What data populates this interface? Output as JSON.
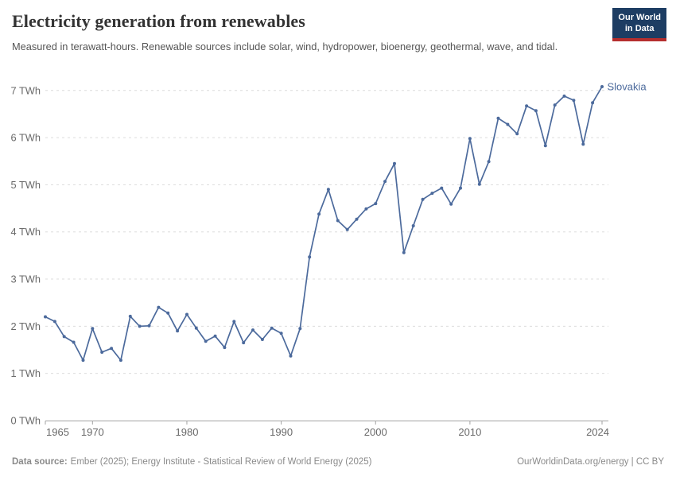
{
  "header": {
    "title": "Electricity generation from renewables",
    "subtitle": "Measured in terawatt-hours. Renewable sources include solar, wind, hydropower, bioenergy, geothermal, wave, and tidal.",
    "logo": {
      "line1": "Our World",
      "line2": "in Data"
    }
  },
  "chart_data": {
    "type": "line",
    "title": "Electricity generation from renewables",
    "ylabel": "",
    "xlabel": "",
    "unit": "TWh",
    "ylim": [
      0,
      7.4
    ],
    "xlim": [
      1965,
      2024
    ],
    "grid": true,
    "legend_position": "end-of-line",
    "y_ticks": [
      {
        "v": 0,
        "label": "0 TWh"
      },
      {
        "v": 1,
        "label": "1 TWh"
      },
      {
        "v": 2,
        "label": "2 TWh"
      },
      {
        "v": 3,
        "label": "3 TWh"
      },
      {
        "v": 4,
        "label": "4 TWh"
      },
      {
        "v": 5,
        "label": "5 TWh"
      },
      {
        "v": 6,
        "label": "6 TWh"
      },
      {
        "v": 7,
        "label": "7 TWh"
      }
    ],
    "x_ticks": [
      {
        "v": 1965,
        "label": "1965"
      },
      {
        "v": 1970,
        "label": "1970"
      },
      {
        "v": 1980,
        "label": "1980"
      },
      {
        "v": 1990,
        "label": "1990"
      },
      {
        "v": 2000,
        "label": "2000"
      },
      {
        "v": 2010,
        "label": "2010"
      },
      {
        "v": 2024,
        "label": "2024"
      }
    ],
    "series": [
      {
        "name": "Slovakia",
        "color": "#4C6A9C",
        "years": [
          1965,
          1966,
          1967,
          1968,
          1969,
          1970,
          1971,
          1972,
          1973,
          1974,
          1975,
          1976,
          1977,
          1978,
          1979,
          1980,
          1981,
          1982,
          1983,
          1984,
          1985,
          1986,
          1987,
          1988,
          1989,
          1990,
          1991,
          1992,
          1993,
          1994,
          1995,
          1996,
          1997,
          1998,
          1999,
          2000,
          2001,
          2002,
          2003,
          2004,
          2005,
          2006,
          2007,
          2008,
          2009,
          2010,
          2011,
          2012,
          2013,
          2014,
          2015,
          2016,
          2017,
          2018,
          2019,
          2020,
          2021,
          2022,
          2023,
          2024
        ],
        "values": [
          2.2,
          2.1,
          1.78,
          1.66,
          1.28,
          1.95,
          1.45,
          1.53,
          1.28,
          2.21,
          2.0,
          2.01,
          2.4,
          2.28,
          1.9,
          2.25,
          1.96,
          1.68,
          1.79,
          1.55,
          2.1,
          1.65,
          1.92,
          1.72,
          1.96,
          1.85,
          1.37,
          1.95,
          3.47,
          4.38,
          4.9,
          4.24,
          4.05,
          4.27,
          4.49,
          4.6,
          5.07,
          5.45,
          3.56,
          4.13,
          4.69,
          4.82,
          4.93,
          4.59,
          4.93,
          5.98,
          5.01,
          5.49,
          6.41,
          6.28,
          6.08,
          6.67,
          6.57,
          5.83,
          6.69,
          6.88,
          6.79,
          5.86,
          6.74,
          7.08
        ]
      }
    ]
  },
  "colors": {
    "line": "#4C6A9C",
    "grid": "#dcdcdc",
    "axis": "#a3a3a3",
    "tick_text": "#696969",
    "logo_bg": "#1d3d63",
    "logo_stripe": "#b52e2e"
  },
  "footer": {
    "datasource_label": "Data source:",
    "datasource_text": "Ember (2025); Energy Institute - Statistical Review of World Energy (2025)",
    "credit": "OurWorldinData.org/energy | CC BY"
  }
}
